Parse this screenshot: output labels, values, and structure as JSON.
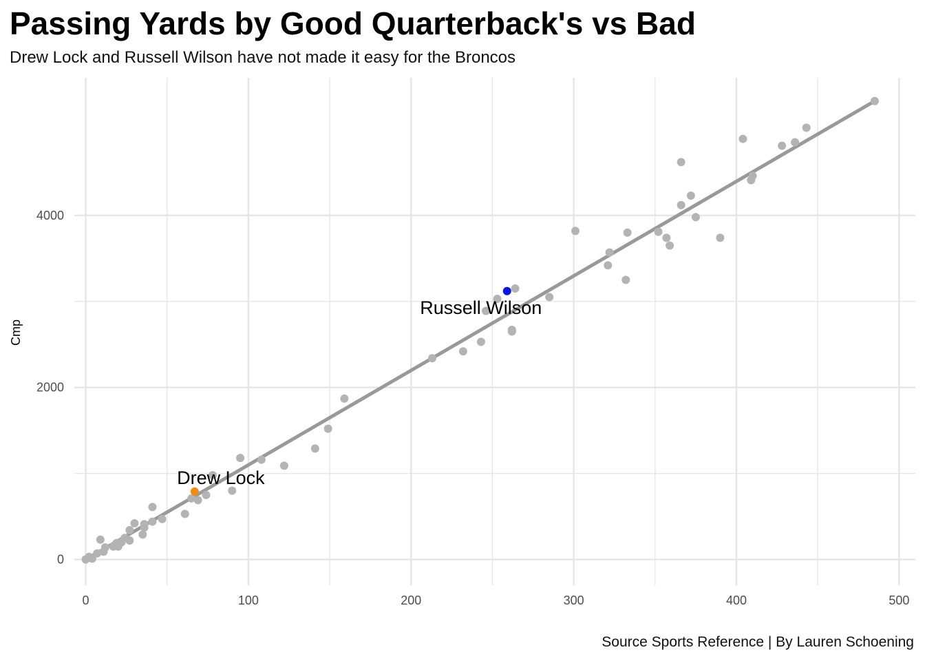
{
  "title": "Passing Yards by Good Quarterback's vs Bad",
  "subtitle": "Drew Lock and Russell Wilson have not made it easy for the Broncos",
  "caption": "Source Sports Reference | By Lauren Schoening",
  "colors": {
    "background": "#ffffff",
    "grid": "#e5e5e5",
    "points": "#b3b3b3",
    "trend_line": "#999999",
    "drew_lock": "#f28c0f",
    "russell_wilson": "#0a14e6"
  },
  "chart_data": {
    "type": "scatter",
    "title": "Passing Yards by Good Quarterback's vs Bad",
    "subtitle": "Drew Lock and Russell Wilson have not made it easy for the Broncos",
    "xlabel": "",
    "ylabel": "Cmp",
    "xlim": [
      -7,
      510
    ],
    "ylim": [
      -300,
      5600
    ],
    "x_ticks": [
      0,
      100,
      200,
      300,
      400,
      500
    ],
    "y_ticks": [
      0,
      2000,
      4000
    ],
    "x_tick_labels": [
      "0",
      "100",
      "200",
      "300",
      "400",
      "500"
    ],
    "y_tick_labels": [
      "0",
      "2000",
      "4000"
    ],
    "grid": true,
    "legend": "none",
    "trend_line": {
      "type": "linear",
      "x": [
        0,
        485
      ],
      "y": [
        0,
        5330
      ]
    },
    "points": [
      {
        "x": 0,
        "y": 0
      },
      {
        "x": 2,
        "y": 30
      },
      {
        "x": 4,
        "y": 10
      },
      {
        "x": 7,
        "y": 70
      },
      {
        "x": 9,
        "y": 230
      },
      {
        "x": 11,
        "y": 90
      },
      {
        "x": 12,
        "y": 140
      },
      {
        "x": 17,
        "y": 150
      },
      {
        "x": 19,
        "y": 190
      },
      {
        "x": 20,
        "y": 150
      },
      {
        "x": 22,
        "y": 200
      },
      {
        "x": 24,
        "y": 250
      },
      {
        "x": 27,
        "y": 340
      },
      {
        "x": 27,
        "y": 220
      },
      {
        "x": 30,
        "y": 420
      },
      {
        "x": 35,
        "y": 290
      },
      {
        "x": 36,
        "y": 370
      },
      {
        "x": 36,
        "y": 410
      },
      {
        "x": 41,
        "y": 610
      },
      {
        "x": 41,
        "y": 440
      },
      {
        "x": 47,
        "y": 470
      },
      {
        "x": 61,
        "y": 530
      },
      {
        "x": 65,
        "y": 710
      },
      {
        "x": 69,
        "y": 690
      },
      {
        "x": 74,
        "y": 750
      },
      {
        "x": 78,
        "y": 980
      },
      {
        "x": 90,
        "y": 800
      },
      {
        "x": 95,
        "y": 1180
      },
      {
        "x": 108,
        "y": 1160
      },
      {
        "x": 122,
        "y": 1090
      },
      {
        "x": 141,
        "y": 1290
      },
      {
        "x": 149,
        "y": 1520
      },
      {
        "x": 159,
        "y": 1870
      },
      {
        "x": 213,
        "y": 2340
      },
      {
        "x": 232,
        "y": 2420
      },
      {
        "x": 243,
        "y": 2530
      },
      {
        "x": 246,
        "y": 2890
      },
      {
        "x": 253,
        "y": 3030
      },
      {
        "x": 262,
        "y": 2670
      },
      {
        "x": 262,
        "y": 2650
      },
      {
        "x": 264,
        "y": 3150
      },
      {
        "x": 285,
        "y": 3050
      },
      {
        "x": 301,
        "y": 3820
      },
      {
        "x": 321,
        "y": 3420
      },
      {
        "x": 322,
        "y": 3570
      },
      {
        "x": 332,
        "y": 3250
      },
      {
        "x": 333,
        "y": 3800
      },
      {
        "x": 352,
        "y": 3810
      },
      {
        "x": 357,
        "y": 3740
      },
      {
        "x": 359,
        "y": 3650
      },
      {
        "x": 366,
        "y": 4620
      },
      {
        "x": 366,
        "y": 4120
      },
      {
        "x": 372,
        "y": 4230
      },
      {
        "x": 375,
        "y": 3980
      },
      {
        "x": 390,
        "y": 3740
      },
      {
        "x": 404,
        "y": 4890
      },
      {
        "x": 409,
        "y": 4410
      },
      {
        "x": 410,
        "y": 4460
      },
      {
        "x": 428,
        "y": 4810
      },
      {
        "x": 436,
        "y": 4850
      },
      {
        "x": 443,
        "y": 5020
      },
      {
        "x": 485,
        "y": 5330
      }
    ],
    "highlights": [
      {
        "label": "Drew Lock",
        "x": 67,
        "y": 790,
        "color": "#f28c0f"
      },
      {
        "label": "Russell Wilson",
        "x": 259,
        "y": 3120,
        "color": "#0a14e6"
      }
    ]
  }
}
